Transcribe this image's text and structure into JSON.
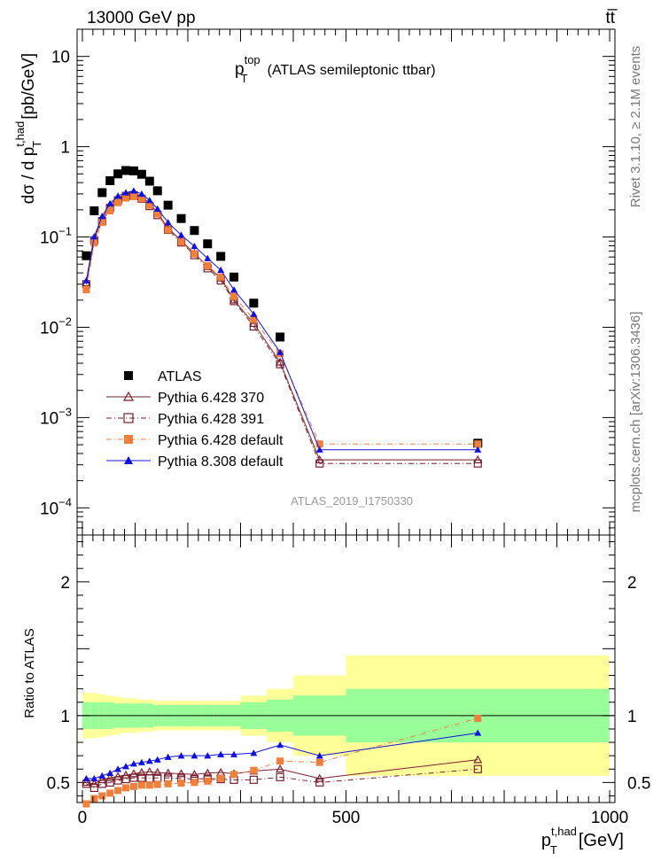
{
  "header": {
    "left": "13000 GeV pp",
    "right": "tt̅"
  },
  "side": {
    "rivet": "Rivet 3.1.10, ≥ 2.1M events",
    "mcplots": "mcplots.cern.ch [arXiv:1306.3436]"
  },
  "chart_data": {
    "type": "scatter",
    "title": "p_T^top (ATLAS semileptonic ttbar)",
    "title_main": "p",
    "title_sub": "T",
    "title_sup": "top",
    "title_rest": "(ATLAS semileptonic ttbar)",
    "analysis_label": "ATLAS_2019_I1750330",
    "xlabel": "p_T^{t,had} [GeV]",
    "xlabel_main": "p",
    "xlabel_sub": "T",
    "xlabel_sup": "t,had",
    "xlabel_unit": "[GeV]",
    "ylabel": "dσ / d p_T^{t,had} [pb/GeV]",
    "ylabel_pre": "dσ / d p",
    "ylabel_sub": "T",
    "ylabel_sup": "t,had",
    "ylabel_unit": "[pb/GeV]",
    "ratio_ylabel": "Ratio to ATLAS",
    "xlim": [
      -10,
      1010
    ],
    "ylim_main": [
      5e-05,
      20
    ],
    "ylog": true,
    "ylim_ratio": [
      0.35,
      2.35
    ],
    "x_ticks": [
      {
        "value": 0,
        "label": "0"
      },
      {
        "value": 500,
        "label": "500"
      },
      {
        "value": 1000,
        "label": "1000"
      }
    ],
    "y_ticks_main": [
      {
        "value": 10,
        "base": "10",
        "exp": ""
      },
      {
        "value": 1,
        "base": "1",
        "exp": ""
      },
      {
        "value": 0.1,
        "base": "10",
        "exp": "−1"
      },
      {
        "value": 0.01,
        "base": "10",
        "exp": "−2"
      },
      {
        "value": 0.001,
        "base": "10",
        "exp": "−3"
      },
      {
        "value": 0.0001,
        "base": "10",
        "exp": "−4"
      }
    ],
    "y_ticks_ratio": [
      {
        "value": 0.5,
        "label": "0.5"
      },
      {
        "value": 1,
        "label": "1"
      },
      {
        "value": 2,
        "label": "2"
      }
    ],
    "legend_position": "bottom-left",
    "x": [
      7.5,
      22.5,
      37.5,
      52.5,
      67.5,
      82.5,
      97.5,
      112.5,
      127.5,
      142.5,
      162.5,
      187.5,
      212.5,
      237.5,
      262.5,
      287.5,
      325,
      375,
      450,
      750
    ],
    "bin_edges": [
      0,
      15,
      30,
      45,
      60,
      75,
      90,
      105,
      120,
      135,
      150,
      175,
      200,
      225,
      250,
      275,
      300,
      350,
      400,
      500,
      1000
    ],
    "series": [
      {
        "name": "ATLAS",
        "color": "#000000",
        "marker": "square",
        "values": [
          0.062,
          0.195,
          0.31,
          0.42,
          0.5,
          0.545,
          0.54,
          0.495,
          0.415,
          0.325,
          0.225,
          0.16,
          0.118,
          0.084,
          0.061,
          0.036,
          0.0185,
          0.0078,
          0.00052,
          0.00052
        ]
      },
      {
        "name": "Pythia 6.428 370",
        "color": "#7a1f2e",
        "marker": "open-triangle",
        "line": "solid",
        "values": [
          0.031,
          0.096,
          0.16,
          0.225,
          0.27,
          0.3,
          0.31,
          0.28,
          0.235,
          0.185,
          0.125,
          0.091,
          0.066,
          0.047,
          0.035,
          0.02,
          0.011,
          0.0041,
          0.00034,
          0.00034
        ],
        "ratio": [
          0.5,
          0.49,
          0.52,
          0.535,
          0.545,
          0.555,
          0.565,
          0.575,
          0.58,
          0.575,
          0.57,
          0.565,
          0.56,
          0.57,
          0.575,
          0.565,
          0.585,
          0.6,
          0.53,
          0.67
        ]
      },
      {
        "name": "Pythia 6.428 391",
        "color": "#7a1f2e",
        "marker": "open-square",
        "line": "dashdot",
        "values": [
          0.03,
          0.092,
          0.15,
          0.21,
          0.255,
          0.285,
          0.29,
          0.265,
          0.22,
          0.175,
          0.12,
          0.087,
          0.063,
          0.045,
          0.033,
          0.0195,
          0.0102,
          0.0039,
          0.00031,
          0.00031
        ],
        "ratio": [
          0.49,
          0.46,
          0.49,
          0.5,
          0.515,
          0.525,
          0.535,
          0.535,
          0.53,
          0.535,
          0.535,
          0.53,
          0.525,
          0.53,
          0.525,
          0.52,
          0.52,
          0.54,
          0.5,
          0.6
        ]
      },
      {
        "name": "Pythia 6.428 default",
        "color": "#f07f3c",
        "marker": "square",
        "line": "dashdot",
        "values": [
          0.026,
          0.086,
          0.145,
          0.195,
          0.24,
          0.27,
          0.28,
          0.265,
          0.225,
          0.18,
          0.12,
          0.088,
          0.065,
          0.048,
          0.036,
          0.022,
          0.0122,
          0.0051,
          0.00051,
          0.00051
        ],
        "ratio": [
          0.34,
          0.38,
          0.4,
          0.42,
          0.44,
          0.46,
          0.47,
          0.48,
          0.48,
          0.485,
          0.49,
          0.495,
          0.5,
          0.51,
          0.53,
          0.56,
          0.59,
          0.66,
          0.65,
          0.98
        ]
      },
      {
        "name": "Pythia 8.308 default",
        "color": "#1111dd",
        "marker": "triangle",
        "line": "solid",
        "values": [
          0.033,
          0.101,
          0.17,
          0.235,
          0.285,
          0.31,
          0.325,
          0.3,
          0.255,
          0.205,
          0.145,
          0.105,
          0.079,
          0.058,
          0.043,
          0.026,
          0.014,
          0.0053,
          0.00044,
          0.00044
        ],
        "ratio": [
          0.53,
          0.53,
          0.55,
          0.57,
          0.6,
          0.62,
          0.64,
          0.65,
          0.66,
          0.67,
          0.69,
          0.7,
          0.7,
          0.7,
          0.71,
          0.71,
          0.72,
          0.78,
          0.7,
          0.87
        ]
      }
    ],
    "ratio_bands": {
      "inner_color": "#99ff99",
      "outer_color": "#ffff99",
      "inner_half": [
        0.1,
        0.1,
        0.1,
        0.1,
        0.09,
        0.09,
        0.09,
        0.09,
        0.09,
        0.08,
        0.08,
        0.08,
        0.08,
        0.08,
        0.08,
        0.08,
        0.1,
        0.12,
        0.15,
        0.2
      ],
      "outer_half": [
        0.17,
        0.17,
        0.16,
        0.15,
        0.14,
        0.13,
        0.13,
        0.12,
        0.12,
        0.11,
        0.11,
        0.11,
        0.11,
        0.11,
        0.11,
        0.11,
        0.15,
        0.2,
        0.3,
        0.45
      ]
    }
  }
}
